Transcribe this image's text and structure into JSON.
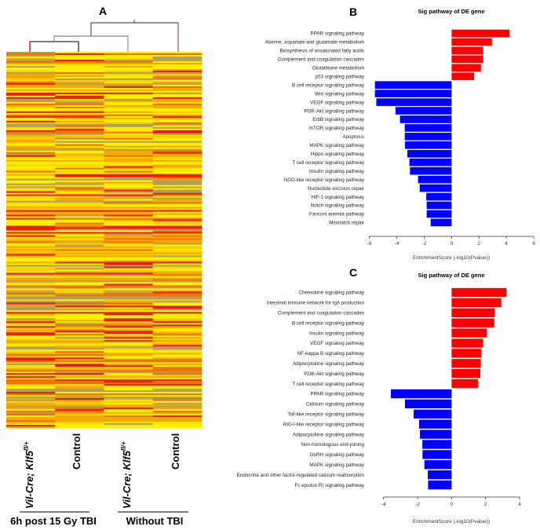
{
  "panel_a": {
    "label": "A",
    "samples": [
      "Vil-Cre; Klf5",
      "Control",
      "Vil-Cre; Klf5",
      "Control"
    ],
    "sample_superscript": "fl/+",
    "groups": [
      "6h post 15 Gy TBI",
      "Without TBI"
    ],
    "colors": {
      "low": "#ffee00",
      "mid": "#f5a800",
      "high": "#e8200a",
      "gray": "#b0a060"
    }
  },
  "chart_data": [
    {
      "panel": "B",
      "type": "bar",
      "orientation": "horizontal",
      "title": "Sig pathway of DE gene",
      "xlabel": "EnrichmentScore (-log10(Pvalue))",
      "xlim": [
        -6,
        6
      ],
      "xticks": [
        "-6",
        "-4",
        "-2",
        "0",
        "2",
        "4",
        "6"
      ],
      "grid": false,
      "colors": {
        "positive": "#ff0000",
        "negative": "#0000ff"
      },
      "categories": [
        "PPAR signaling pathway",
        "Alanine, aspartate and glutamate metabolism",
        "Biosynthesis of unsaturated fatty acids",
        "Complement and coagulation cascades",
        "Glutathione metabolism",
        "p53 signaling pathway",
        "B cell receptor signaling pathway",
        "Wnt signaling pathway",
        "VEGF signaling pathway",
        "PI3K-Akt signaling pathway",
        "ErbB signaling pathway",
        "mTOR signaling pathway",
        "Apoptosis",
        "MAPK signaling pathway",
        "Hippo signaling pathway",
        "T cell receptor signaling pathway",
        "Insulin signaling pathway",
        "NOD-like receptor signaling pathway",
        "Nucleotide excision repair",
        "HIF-1 signaling pathway",
        "Notch signaling pathway",
        "Fanconi anemia pathway",
        "Mismatch repair"
      ],
      "values": [
        4.22,
        2.95,
        2.3,
        2.3,
        2.15,
        1.65,
        -5.6,
        -5.6,
        -5.5,
        -4.1,
        -3.77,
        -3.42,
        -3.42,
        -3.4,
        -3.23,
        -3.08,
        -3.04,
        -2.45,
        -2.33,
        -1.85,
        -1.82,
        -1.82,
        -1.53
      ]
    },
    {
      "panel": "C",
      "type": "bar",
      "orientation": "horizontal",
      "title": "Sig pathway of DE gene",
      "xlabel": "EnrichmentScore (-log10(Pvalue))",
      "xlim": [
        -4,
        4
      ],
      "xticks": [
        "-4",
        "-2",
        "0",
        "2",
        "4"
      ],
      "grid": false,
      "colors": {
        "positive": "#ff0000",
        "negative": "#0000ff"
      },
      "categories": [
        "Chemokine signaling pathway",
        "Intestinal immune network for IgA production",
        "Complement and coagulation cascades",
        "B cell receptor signaling pathway",
        "Insulin signaling pathway",
        "VEGF signaling pathway",
        "NF-kappa B signaling pathway",
        "Adipocytokine signaling pathway",
        "PI3K-Akt signaling pathway",
        "T cell receptor signaling pathway",
        "PPAR signaling pathway",
        "Calcium signaling pathway",
        "Toll-like receptor signaling pathway",
        "RIG-I-like receptor signaling pathway",
        "Adipocytokine signaling pathway",
        "Non-homologous end-joining",
        "GnRH signaling pathway",
        "MAPK signaling pathway",
        "Endocrine and other factor-regulated calcium reabsorption",
        "Fc epsilon RI signaling pathway"
      ],
      "values": [
        3.23,
        2.92,
        2.54,
        2.51,
        2.08,
        1.85,
        1.74,
        1.72,
        1.69,
        1.55,
        -3.57,
        -2.74,
        -2.23,
        -1.91,
        -1.86,
        -1.72,
        -1.71,
        -1.6,
        -1.4,
        -1.38
      ]
    }
  ]
}
